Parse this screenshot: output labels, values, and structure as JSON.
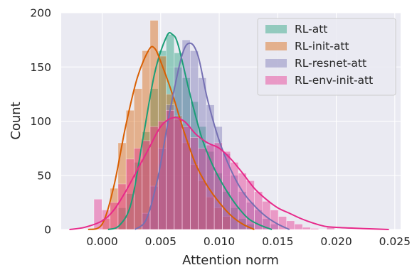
{
  "chart_data": {
    "type": "histogram",
    "xlabel": "Attention norm",
    "ylabel": "Count",
    "xlim": [
      -0.0035,
      0.0255
    ],
    "ylim": [
      0,
      200
    ],
    "x_ticks": [
      "0.000",
      "0.005",
      "0.010",
      "0.015",
      "0.020",
      "0.025"
    ],
    "y_ticks": [
      "0",
      "50",
      "100",
      "150",
      "200"
    ],
    "grid": true,
    "legend_position": "top-right",
    "bin_width": 0.000685,
    "series": [
      {
        "name": "RL-att",
        "color": "#1b9e77",
        "bins": [
          {
            "x": 0.0017,
            "count": 20
          },
          {
            "x": 0.00239,
            "count": 33
          },
          {
            "x": 0.00307,
            "count": 62
          },
          {
            "x": 0.00376,
            "count": 90
          },
          {
            "x": 0.00444,
            "count": 130
          },
          {
            "x": 0.00513,
            "count": 165
          },
          {
            "x": 0.00581,
            "count": 180
          },
          {
            "x": 0.0065,
            "count": 163
          },
          {
            "x": 0.00718,
            "count": 140
          },
          {
            "x": 0.00787,
            "count": 118
          },
          {
            "x": 0.00855,
            "count": 95
          },
          {
            "x": 0.00924,
            "count": 72
          },
          {
            "x": 0.00992,
            "count": 52
          },
          {
            "x": 0.01061,
            "count": 35
          },
          {
            "x": 0.01129,
            "count": 20
          },
          {
            "x": 0.01198,
            "count": 10
          },
          {
            "x": 0.01266,
            "count": 5
          }
        ],
        "kde": [
          [
            0.0005,
            0
          ],
          [
            0.0015,
            4
          ],
          [
            0.0025,
            25
          ],
          [
            0.0035,
            85
          ],
          [
            0.0045,
            145
          ],
          [
            0.0055,
            178
          ],
          [
            0.006,
            180
          ],
          [
            0.0065,
            170
          ],
          [
            0.0075,
            125
          ],
          [
            0.0085,
            85
          ],
          [
            0.0095,
            58
          ],
          [
            0.0105,
            38
          ],
          [
            0.0115,
            22
          ],
          [
            0.0125,
            10
          ],
          [
            0.0135,
            4
          ],
          [
            0.0145,
            0
          ]
        ]
      },
      {
        "name": "RL-init-att",
        "color": "#d95f02",
        "bins": [
          {
            "x": 0.00033,
            "count": 10
          },
          {
            "x": 0.00102,
            "count": 38
          },
          {
            "x": 0.0017,
            "count": 80
          },
          {
            "x": 0.00239,
            "count": 110
          },
          {
            "x": 0.00307,
            "count": 130
          },
          {
            "x": 0.00376,
            "count": 165
          },
          {
            "x": 0.00444,
            "count": 193
          },
          {
            "x": 0.00513,
            "count": 160
          },
          {
            "x": 0.00581,
            "count": 125
          },
          {
            "x": 0.0065,
            "count": 105
          },
          {
            "x": 0.00718,
            "count": 80
          },
          {
            "x": 0.00787,
            "count": 60
          },
          {
            "x": 0.00855,
            "count": 45
          },
          {
            "x": 0.00924,
            "count": 30
          },
          {
            "x": 0.00992,
            "count": 20
          },
          {
            "x": 0.01061,
            "count": 12
          }
        ],
        "kde": [
          [
            -0.0012,
            0
          ],
          [
            0.0,
            5
          ],
          [
            0.001,
            40
          ],
          [
            0.002,
            95
          ],
          [
            0.003,
            140
          ],
          [
            0.004,
            166
          ],
          [
            0.0045,
            167
          ],
          [
            0.005,
            155
          ],
          [
            0.006,
            125
          ],
          [
            0.007,
            90
          ],
          [
            0.008,
            60
          ],
          [
            0.009,
            40
          ],
          [
            0.01,
            25
          ],
          [
            0.011,
            13
          ],
          [
            0.012,
            5
          ],
          [
            0.013,
            0
          ]
        ]
      },
      {
        "name": "RL-resnet-att",
        "color": "#7570b3",
        "bins": [
          {
            "x": 0.00376,
            "count": 15
          },
          {
            "x": 0.00444,
            "count": 40
          },
          {
            "x": 0.00513,
            "count": 75
          },
          {
            "x": 0.00581,
            "count": 115
          },
          {
            "x": 0.0065,
            "count": 150
          },
          {
            "x": 0.00718,
            "count": 175
          },
          {
            "x": 0.00787,
            "count": 165
          },
          {
            "x": 0.00855,
            "count": 140
          },
          {
            "x": 0.00924,
            "count": 115
          },
          {
            "x": 0.00992,
            "count": 95
          },
          {
            "x": 0.01061,
            "count": 70
          },
          {
            "x": 0.01129,
            "count": 50
          },
          {
            "x": 0.01198,
            "count": 35
          },
          {
            "x": 0.01266,
            "count": 25
          },
          {
            "x": 0.01335,
            "count": 18
          },
          {
            "x": 0.01403,
            "count": 10
          },
          {
            "x": 0.01472,
            "count": 5
          }
        ],
        "kde": [
          [
            0.0028,
            0
          ],
          [
            0.0038,
            10
          ],
          [
            0.0048,
            50
          ],
          [
            0.0058,
            110
          ],
          [
            0.0068,
            160
          ],
          [
            0.0075,
            172
          ],
          [
            0.0082,
            160
          ],
          [
            0.009,
            120
          ],
          [
            0.01,
            82
          ],
          [
            0.011,
            55
          ],
          [
            0.012,
            35
          ],
          [
            0.013,
            22
          ],
          [
            0.014,
            12
          ],
          [
            0.015,
            5
          ],
          [
            0.016,
            0
          ]
        ]
      },
      {
        "name": "RL-env-init-att",
        "color": "#e7298a",
        "bins": [
          {
            "x": -0.00036,
            "count": 28
          },
          {
            "x": 0.00033,
            "count": 18
          },
          {
            "x": 0.00102,
            "count": 25
          },
          {
            "x": 0.0017,
            "count": 42
          },
          {
            "x": 0.00239,
            "count": 65
          },
          {
            "x": 0.00307,
            "count": 75
          },
          {
            "x": 0.00376,
            "count": 82
          },
          {
            "x": 0.00444,
            "count": 95
          },
          {
            "x": 0.00513,
            "count": 100
          },
          {
            "x": 0.00581,
            "count": 110
          },
          {
            "x": 0.0065,
            "count": 102
          },
          {
            "x": 0.00718,
            "count": 95
          },
          {
            "x": 0.00787,
            "count": 85
          },
          {
            "x": 0.00855,
            "count": 75
          },
          {
            "x": 0.00924,
            "count": 78
          },
          {
            "x": 0.00992,
            "count": 80
          },
          {
            "x": 0.01061,
            "count": 72
          },
          {
            "x": 0.01129,
            "count": 62
          },
          {
            "x": 0.01198,
            "count": 52
          },
          {
            "x": 0.01266,
            "count": 45
          },
          {
            "x": 0.01335,
            "count": 35
          },
          {
            "x": 0.01403,
            "count": 26
          },
          {
            "x": 0.01472,
            "count": 18
          },
          {
            "x": 0.01541,
            "count": 12
          },
          {
            "x": 0.01609,
            "count": 8
          },
          {
            "x": 0.01678,
            "count": 5
          },
          {
            "x": 0.01746,
            "count": 2
          },
          {
            "x": 0.01815,
            "count": 1
          },
          {
            "x": 0.01883,
            "count": 0
          },
          {
            "x": 0.01952,
            "count": 2
          }
        ],
        "kde": [
          [
            -0.0028,
            0
          ],
          [
            -0.0015,
            2
          ],
          [
            0.0,
            8
          ],
          [
            0.001,
            18
          ],
          [
            0.002,
            35
          ],
          [
            0.003,
            55
          ],
          [
            0.004,
            75
          ],
          [
            0.005,
            95
          ],
          [
            0.006,
            103
          ],
          [
            0.007,
            100
          ],
          [
            0.008,
            88
          ],
          [
            0.009,
            80
          ],
          [
            0.01,
            75
          ],
          [
            0.011,
            65
          ],
          [
            0.012,
            52
          ],
          [
            0.013,
            38
          ],
          [
            0.014,
            28
          ],
          [
            0.015,
            20
          ],
          [
            0.016,
            15
          ],
          [
            0.017,
            10
          ],
          [
            0.018,
            6
          ],
          [
            0.019,
            3
          ],
          [
            0.02,
            2
          ],
          [
            0.022,
            1
          ],
          [
            0.0245,
            0
          ]
        ]
      }
    ]
  }
}
